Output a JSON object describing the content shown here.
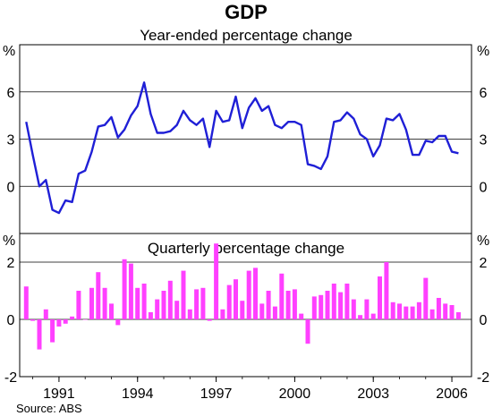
{
  "chart_data": {
    "title": "GDP",
    "source": "Source: ABS",
    "x_tick_labels": [
      "1991",
      "1994",
      "1997",
      "2000",
      "2003",
      "2006"
    ],
    "x_tick_years": [
      1991,
      1994,
      1997,
      2000,
      2003,
      2006
    ],
    "x_range": [
      1989.5,
      2006.75
    ],
    "panels": [
      {
        "type": "line",
        "subtitle": "Year-ended percentage change",
        "unit_label": "%",
        "ylim": [
          -3,
          9
        ],
        "yticks": [
          0,
          3,
          6
        ],
        "ytick_labels": [
          "0",
          "3",
          "6"
        ],
        "color": "#1f1fd6",
        "x": [
          1989.75,
          1990.0,
          1990.25,
          1990.5,
          1990.75,
          1991.0,
          1991.25,
          1991.5,
          1991.75,
          1992.0,
          1992.25,
          1992.5,
          1992.75,
          1993.0,
          1993.25,
          1993.5,
          1993.75,
          1994.0,
          1994.25,
          1994.5,
          1994.75,
          1995.0,
          1995.25,
          1995.5,
          1995.75,
          1996.0,
          1996.25,
          1996.5,
          1996.75,
          1997.0,
          1997.25,
          1997.5,
          1997.75,
          1998.0,
          1998.25,
          1998.5,
          1998.75,
          1999.0,
          1999.25,
          1999.5,
          1999.75,
          2000.0,
          2000.25,
          2000.5,
          2000.75,
          2001.0,
          2001.25,
          2001.5,
          2001.75,
          2002.0,
          2002.25,
          2002.5,
          2002.75,
          2003.0,
          2003.25,
          2003.5,
          2003.75,
          2004.0,
          2004.25,
          2004.5,
          2004.75,
          2005.0,
          2005.25,
          2005.5,
          2005.75,
          2006.0,
          2006.25
        ],
        "values": [
          4.1,
          2.0,
          0.0,
          0.4,
          -1.5,
          -1.7,
          -0.9,
          -1.0,
          0.8,
          1.0,
          2.2,
          3.8,
          3.9,
          4.4,
          3.1,
          3.6,
          4.5,
          5.1,
          6.6,
          4.6,
          3.4,
          3.4,
          3.5,
          3.9,
          4.8,
          4.2,
          3.9,
          4.3,
          2.5,
          4.8,
          4.1,
          4.2,
          5.7,
          3.7,
          5.0,
          5.6,
          4.8,
          5.1,
          3.9,
          3.7,
          4.1,
          4.1,
          3.9,
          1.4,
          1.3,
          1.1,
          1.9,
          4.1,
          4.2,
          4.7,
          4.3,
          3.3,
          3.0,
          1.9,
          2.6,
          4.3,
          4.2,
          4.6,
          3.6,
          2.0,
          2.0,
          2.9,
          2.8,
          3.2,
          3.2,
          2.2,
          2.1
        ]
      },
      {
        "type": "bar",
        "subtitle": "Quarterly percentage change",
        "unit_label": "%",
        "ylim": [
          -2,
          3
        ],
        "yticks": [
          -2,
          0,
          2
        ],
        "ytick_labels": [
          "-2",
          "0",
          "2"
        ],
        "color": "#ff40ff",
        "x": [
          1989.75,
          1990.0,
          1990.25,
          1990.5,
          1990.75,
          1991.0,
          1991.25,
          1991.5,
          1991.75,
          1992.0,
          1992.25,
          1992.5,
          1992.75,
          1993.0,
          1993.25,
          1993.5,
          1993.75,
          1994.0,
          1994.25,
          1994.5,
          1994.75,
          1995.0,
          1995.25,
          1995.5,
          1995.75,
          1996.0,
          1996.25,
          1996.5,
          1996.75,
          1997.0,
          1997.25,
          1997.5,
          1997.75,
          1998.0,
          1998.25,
          1998.5,
          1998.75,
          1999.0,
          1999.25,
          1999.5,
          1999.75,
          2000.0,
          2000.25,
          2000.5,
          2000.75,
          2001.0,
          2001.25,
          2001.5,
          2001.75,
          2002.0,
          2002.25,
          2002.5,
          2002.75,
          2003.0,
          2003.25,
          2003.5,
          2003.75,
          2004.0,
          2004.25,
          2004.5,
          2004.75,
          2005.0,
          2005.25,
          2005.5,
          2005.75,
          2006.0,
          2006.25
        ],
        "values": [
          1.15,
          -0.05,
          -1.05,
          0.35,
          -0.8,
          -0.25,
          -0.15,
          0.1,
          1.0,
          0.0,
          1.1,
          1.65,
          1.1,
          0.55,
          -0.2,
          2.1,
          1.95,
          1.1,
          1.25,
          0.25,
          0.7,
          1.0,
          1.35,
          0.65,
          1.7,
          0.35,
          1.05,
          1.1,
          -0.05,
          2.65,
          0.35,
          1.2,
          1.4,
          0.65,
          1.7,
          1.8,
          0.55,
          1.0,
          0.45,
          1.6,
          1.0,
          1.05,
          0.2,
          -0.85,
          0.8,
          0.85,
          1.0,
          1.25,
          0.95,
          1.25,
          0.7,
          0.15,
          0.7,
          0.2,
          1.5,
          2.0,
          0.6,
          0.55,
          0.45,
          0.45,
          0.6,
          1.45,
          0.35,
          0.75,
          0.55,
          0.5,
          0.25
        ]
      }
    ]
  }
}
